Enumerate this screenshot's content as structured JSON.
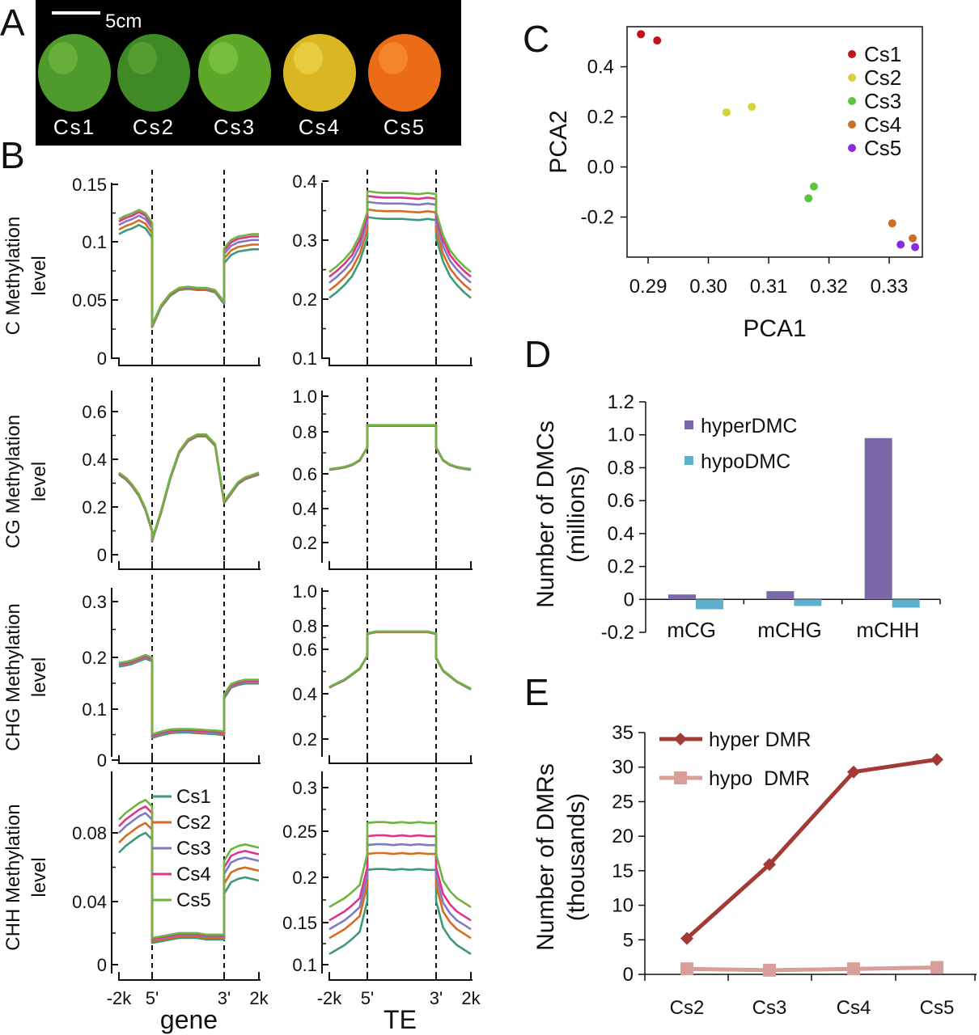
{
  "panels": {
    "A": "A",
    "B": "B",
    "C": "C",
    "D": "D",
    "E": "E"
  },
  "photo": {
    "scale_label": "5cm",
    "fruits": [
      {
        "label": "Cs1",
        "color": "#4f9a2c",
        "highlight": "#7cc049"
      },
      {
        "label": "Cs2",
        "color": "#3f8a24",
        "highlight": "#66ad3c"
      },
      {
        "label": "Cs3",
        "color": "#5ea829",
        "highlight": "#8bd04a"
      },
      {
        "label": "Cs4",
        "color": "#d9b622",
        "highlight": "#f4de5a"
      },
      {
        "label": "Cs5",
        "color": "#ec6b17",
        "highlight": "#fb9a3a"
      }
    ]
  },
  "colors": {
    "Cs1": "#3c9a77",
    "Cs2": "#d86b22",
    "Cs3": "#8179c3",
    "Cs4": "#e0338d",
    "Cs5": "#6fb43e"
  },
  "chart_data": [
    {
      "type": "line",
      "id": "B-C-gene",
      "ylabel": "C Methylation",
      "ylabel2": "level",
      "x_ticks": [],
      "y_ticks": [
        "0",
        "0.05",
        "0.1",
        "0.15"
      ],
      "ylim": [
        0,
        0.15
      ],
      "profile": {
        "up": [
          0.115,
          0.118,
          0.12,
          0.123,
          0.12,
          0.112
        ],
        "body": [
          0.028,
          0.045,
          0.055,
          0.06,
          0.061,
          0.06,
          0.06,
          0.058,
          0.048
        ],
        "down": [
          0.09,
          0.097,
          0.1,
          0.101,
          0.102,
          0.102
        ],
        "spread": [
          -0.008,
          -0.004,
          0,
          0.003,
          0.005
        ],
        "spread_region": "flanks"
      }
    },
    {
      "type": "line",
      "id": "B-C-TE",
      "x_ticks": [],
      "y_ticks": [
        "0.1",
        "0.2",
        "0.3",
        "0.4"
      ],
      "ylim": [
        0.1,
        0.4
      ],
      "profile": {
        "up": [
          0.228,
          0.238,
          0.25,
          0.265,
          0.29,
          0.33
        ],
        "body": [
          0.365,
          0.363,
          0.362,
          0.362,
          0.362,
          0.361,
          0.36,
          0.362,
          0.36
        ],
        "down": [
          0.33,
          0.29,
          0.265,
          0.25,
          0.238,
          0.228
        ],
        "spread": [
          -0.026,
          -0.013,
          0,
          0.01,
          0.018
        ],
        "spread_region": "all"
      }
    },
    {
      "type": "line",
      "id": "B-CG-gene",
      "ylabel": "CG Methylation",
      "ylabel2": "level",
      "x_ticks": [],
      "y_ticks": [
        "0",
        "0.2",
        "0.4",
        "0.6"
      ],
      "ylim": [
        0,
        0.6
      ],
      "profile": {
        "up": [
          0.34,
          0.32,
          0.29,
          0.25,
          0.19,
          0.1
        ],
        "body": [
          0.06,
          0.18,
          0.32,
          0.43,
          0.48,
          0.5,
          0.5,
          0.46,
          0.22
        ],
        "down": [
          0.22,
          0.26,
          0.3,
          0.32,
          0.33,
          0.34
        ],
        "spread": [
          -0.004,
          -0.002,
          0,
          0.002,
          0.004
        ],
        "spread_region": "all"
      }
    },
    {
      "type": "line",
      "id": "B-CG-TE",
      "x_ticks": [],
      "y_ticks": [
        "0.2",
        "0.4",
        "0.6",
        "0.8",
        "1.0"
      ],
      "ylim": [
        0.1,
        1.0
      ],
      "profile": {
        "up": [
          0.6,
          0.605,
          0.612,
          0.625,
          0.65,
          0.72
        ],
        "body": [
          0.84,
          0.84,
          0.84,
          0.84,
          0.84,
          0.84,
          0.84,
          0.84,
          0.84
        ],
        "down": [
          0.72,
          0.65,
          0.625,
          0.612,
          0.605,
          0.6
        ],
        "spread": [
          -0.002,
          -0.001,
          0,
          0.001,
          0.002
        ],
        "spread_region": "all"
      }
    },
    {
      "type": "line",
      "id": "B-CHG-gene",
      "ylabel": "CHG Methylation",
      "ylabel2": "level",
      "x_ticks": [],
      "y_ticks": [
        "0",
        "0.1",
        "0.2",
        "0.3"
      ],
      "ylim": [
        0,
        0.3
      ],
      "profile": {
        "up": [
          0.18,
          0.182,
          0.185,
          0.19,
          0.195,
          0.19
        ],
        "body": [
          0.045,
          0.05,
          0.054,
          0.055,
          0.055,
          0.054,
          0.053,
          0.052,
          0.05
        ],
        "down": [
          0.12,
          0.14,
          0.145,
          0.148,
          0.148,
          0.148
        ],
        "spread": [
          -0.003,
          -0.001,
          0,
          0.002,
          0.004
        ],
        "spread_region": "all"
      }
    },
    {
      "type": "line",
      "id": "B-CHG-TE",
      "x_ticks": [],
      "y_ticks": [
        "0.2",
        "0.4",
        "0.6",
        "0.8",
        "1.0"
      ],
      "ylim": [
        0.2,
        1.0
      ],
      "profile": {
        "up": [
          0.48,
          0.5,
          0.52,
          0.55,
          0.58,
          0.65
        ],
        "body": [
          0.77,
          0.78,
          0.78,
          0.78,
          0.78,
          0.78,
          0.78,
          0.78,
          0.77
        ],
        "down": [
          0.64,
          0.57,
          0.54,
          0.51,
          0.49,
          0.47
        ],
        "spread": [
          -0.002,
          -0.001,
          0,
          0.001,
          0.002
        ],
        "spread_region": "all"
      }
    },
    {
      "type": "line",
      "id": "B-CHH-gene",
      "ylabel": "CHH Methylation",
      "ylabel2": "level",
      "x_ticks": [
        "-2k",
        "5'",
        "3'",
        "2k"
      ],
      "x_label": "gene",
      "y_ticks": [
        "0",
        "0.04",
        "0.08"
      ],
      "ylim": [
        0,
        0.1
      ],
      "legend": [
        "Cs1",
        "Cs2",
        "Cs3",
        "Cs4",
        "Cs5"
      ],
      "profile": {
        "up": [
          0.08,
          0.084,
          0.087,
          0.09,
          0.092,
          0.088
        ],
        "body": [
          0.015,
          0.016,
          0.017,
          0.018,
          0.018,
          0.018,
          0.017,
          0.017,
          0.017
        ],
        "down": [
          0.055,
          0.062,
          0.064,
          0.065,
          0.064,
          0.063
        ],
        "spread": [
          -0.012,
          -0.006,
          0,
          0.004,
          0.008
        ],
        "spread_region": "flanks"
      }
    },
    {
      "type": "line",
      "id": "B-CHH-TE",
      "x_ticks": [
        "-2k",
        "5'",
        "3'",
        "2k"
      ],
      "x_label": "TE",
      "y_ticks": [
        "0.1",
        "0.15",
        "0.2",
        "0.25",
        "0.3"
      ],
      "ylim": [
        0.1,
        0.3
      ],
      "profile": {
        "up": [
          0.14,
          0.145,
          0.15,
          0.157,
          0.165,
          0.2
        ],
        "body": [
          0.235,
          0.236,
          0.236,
          0.235,
          0.236,
          0.235,
          0.236,
          0.235,
          0.235
        ],
        "down": [
          0.2,
          0.17,
          0.158,
          0.15,
          0.145,
          0.14
        ],
        "spread": [
          -0.028,
          -0.01,
          0,
          0.01,
          0.025
        ],
        "spread_region": "all"
      }
    },
    {
      "type": "scatter",
      "id": "C",
      "xlabel": "PCA1",
      "ylabel": "PCA2",
      "xlim": [
        0.2865,
        0.3355
      ],
      "ylim": [
        -0.36,
        0.56
      ],
      "x_ticks": [
        "0.29",
        "0.30",
        "0.31",
        "0.32",
        "0.33"
      ],
      "x_tick_values": [
        0.29,
        0.3,
        0.31,
        0.32,
        0.33
      ],
      "y_ticks": [
        "-0.2",
        "0.0",
        "0.2",
        "0.4"
      ],
      "y_tick_values": [
        -0.2,
        0.0,
        0.2,
        0.4
      ],
      "series": [
        {
          "name": "Cs1",
          "color": "#c0141b",
          "points": [
            [
              0.2888,
              0.53
            ],
            [
              0.2915,
              0.505
            ]
          ]
        },
        {
          "name": "Cs2",
          "color": "#d6d339",
          "points": [
            [
              0.303,
              0.218
            ],
            [
              0.3072,
              0.24
            ]
          ]
        },
        {
          "name": "Cs3",
          "color": "#5cc43a",
          "points": [
            [
              0.3166,
              -0.125
            ],
            [
              0.3175,
              -0.078
            ]
          ]
        },
        {
          "name": "Cs4",
          "color": "#c8702a",
          "points": [
            [
              0.3305,
              -0.225
            ],
            [
              0.3339,
              -0.285
            ]
          ]
        },
        {
          "name": "Cs5",
          "color": "#8a2be2",
          "points": [
            [
              0.3319,
              -0.31
            ],
            [
              0.3343,
              -0.32
            ]
          ]
        }
      ],
      "legend": "top-right"
    },
    {
      "type": "bar",
      "id": "D",
      "ylabel": "Number of DMCs",
      "ylabel2": "(millions)",
      "categories": [
        "mCG",
        "mCHG",
        "mCHH"
      ],
      "ylim": [
        -0.2,
        1.2
      ],
      "y_ticks": [
        "-0.2",
        "0",
        "0.2",
        "0.4",
        "0.6",
        "0.8",
        "1.0",
        "1.2"
      ],
      "y_tick_values": [
        -0.2,
        0,
        0.2,
        0.4,
        0.6,
        0.8,
        1.0,
        1.2
      ],
      "series": [
        {
          "name": "hyperDMC",
          "color": "#7b68a8",
          "values": [
            0.03,
            0.05,
            0.98
          ]
        },
        {
          "name": "hypoDMC",
          "color": "#5fb0cf",
          "values": [
            -0.06,
            -0.04,
            -0.05
          ]
        }
      ],
      "legend": "top-left"
    },
    {
      "type": "line",
      "id": "E",
      "ylabel": "Number of DMRs",
      "ylabel2": "(thousands)",
      "categories": [
        "Cs2",
        "Cs3",
        "Cs4",
        "Cs5"
      ],
      "ylim": [
        0,
        35
      ],
      "y_ticks": [
        "0",
        "5",
        "10",
        "15",
        "20",
        "25",
        "30",
        "35"
      ],
      "y_tick_values": [
        0,
        5,
        10,
        15,
        20,
        25,
        30,
        35
      ],
      "series": [
        {
          "name": "hyper DMR",
          "color": "#a33a36",
          "marker": "diamond",
          "values": [
            5.2,
            15.9,
            29.3,
            31.1
          ]
        },
        {
          "name": "hypo  DMR",
          "color": "#d89e9a",
          "marker": "square",
          "values": [
            0.8,
            0.6,
            0.8,
            1.0
          ]
        }
      ],
      "legend": "top-left"
    }
  ]
}
